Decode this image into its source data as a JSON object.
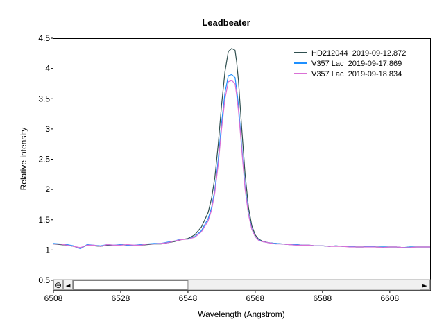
{
  "chart_data": {
    "type": "line",
    "title": "Leadbeater",
    "xlabel": "Wavelength (Angstrom)",
    "ylabel": "Relative intensity",
    "xlim": [
      6508,
      6620
    ],
    "ylim": [
      0.5,
      4.5
    ],
    "x_ticks": [
      "6508",
      "6528",
      "6548",
      "6568",
      "6588",
      "6608"
    ],
    "y_ticks": [
      "0.5",
      "1",
      "1.5",
      "2",
      "2.5",
      "3",
      "3.5",
      "4",
      "4.5"
    ],
    "grid": false,
    "legend_position": "top-right",
    "x": [
      6508,
      6510,
      6512,
      6514,
      6516,
      6518,
      6520,
      6522,
      6524,
      6526,
      6528,
      6530,
      6532,
      6534,
      6536,
      6538,
      6540,
      6542,
      6544,
      6546,
      6548,
      6550,
      6552,
      6554,
      6555,
      6556,
      6557,
      6558,
      6559,
      6560,
      6561,
      6562,
      6562.5,
      6563,
      6563.5,
      6564,
      6565,
      6566,
      6567,
      6568,
      6569,
      6570,
      6572,
      6574,
      6576,
      6578,
      6580,
      6582,
      6584,
      6586,
      6588,
      6590,
      6592,
      6594,
      6596,
      6598,
      6600,
      6602,
      6604,
      6606,
      6608,
      6610,
      6612,
      6614,
      6616,
      6618,
      6620
    ],
    "series": [
      {
        "name": "HD212044  2019-09-12.872",
        "color": "#2f4f4f",
        "values": [
          1.1,
          1.09,
          1.08,
          1.06,
          1.03,
          1.08,
          1.07,
          1.06,
          1.08,
          1.07,
          1.09,
          1.08,
          1.07,
          1.08,
          1.09,
          1.1,
          1.1,
          1.12,
          1.14,
          1.17,
          1.19,
          1.25,
          1.38,
          1.62,
          1.85,
          2.2,
          2.75,
          3.4,
          3.95,
          4.28,
          4.33,
          4.3,
          4.1,
          3.8,
          3.4,
          3.0,
          2.25,
          1.7,
          1.4,
          1.25,
          1.18,
          1.15,
          1.12,
          1.11,
          1.1,
          1.09,
          1.09,
          1.08,
          1.08,
          1.07,
          1.07,
          1.06,
          1.07,
          1.06,
          1.06,
          1.05,
          1.05,
          1.06,
          1.05,
          1.05,
          1.05,
          1.05,
          1.04,
          1.05,
          1.05,
          1.05,
          1.05
        ]
      },
      {
        "name": "V357 Lac  2019-09-17.869",
        "color": "#1e90ff",
        "values": [
          1.11,
          1.1,
          1.09,
          1.07,
          1.02,
          1.09,
          1.08,
          1.07,
          1.09,
          1.08,
          1.09,
          1.08,
          1.08,
          1.09,
          1.1,
          1.11,
          1.11,
          1.13,
          1.15,
          1.18,
          1.18,
          1.22,
          1.32,
          1.52,
          1.7,
          2.0,
          2.5,
          3.1,
          3.6,
          3.88,
          3.9,
          3.85,
          3.65,
          3.4,
          3.05,
          2.7,
          2.05,
          1.6,
          1.35,
          1.22,
          1.17,
          1.14,
          1.12,
          1.11,
          1.1,
          1.09,
          1.09,
          1.08,
          1.08,
          1.07,
          1.07,
          1.06,
          1.07,
          1.06,
          1.06,
          1.05,
          1.05,
          1.06,
          1.05,
          1.05,
          1.05,
          1.05,
          1.04,
          1.05,
          1.05,
          1.05,
          1.05
        ]
      },
      {
        "name": "V357 Lac  2019-09-18.834",
        "color": "#da70d6",
        "values": [
          1.1,
          1.1,
          1.08,
          1.06,
          1.04,
          1.08,
          1.08,
          1.06,
          1.09,
          1.08,
          1.08,
          1.09,
          1.08,
          1.08,
          1.1,
          1.1,
          1.11,
          1.12,
          1.15,
          1.17,
          1.18,
          1.21,
          1.3,
          1.48,
          1.66,
          1.95,
          2.42,
          3.0,
          3.5,
          3.78,
          3.8,
          3.75,
          3.55,
          3.3,
          2.98,
          2.65,
          2.0,
          1.58,
          1.34,
          1.22,
          1.16,
          1.14,
          1.12,
          1.1,
          1.1,
          1.09,
          1.08,
          1.08,
          1.08,
          1.07,
          1.07,
          1.06,
          1.06,
          1.06,
          1.05,
          1.05,
          1.05,
          1.05,
          1.05,
          1.04,
          1.05,
          1.05,
          1.04,
          1.04,
          1.05,
          1.05,
          1.05
        ]
      }
    ]
  },
  "scrollbar": {
    "zoom_reset_icon": "zoom-reset-icon",
    "left_arrow_icon": "left-arrow-icon",
    "right_arrow_icon": "right-arrow-icon",
    "zoom_reset_glyph": "⊖",
    "left_glyph": "◄",
    "right_glyph": "►",
    "thumb_start": 6508,
    "thumb_end": 6548
  }
}
